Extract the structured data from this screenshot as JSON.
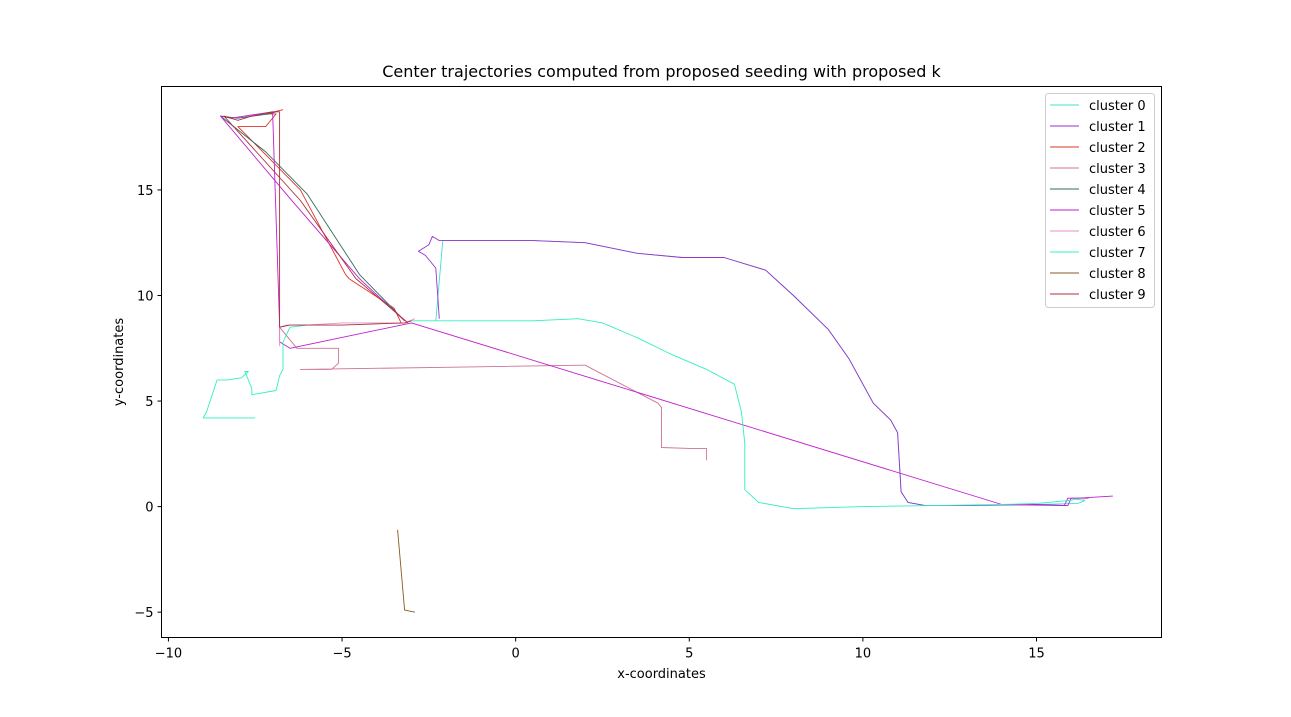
{
  "chart_data": {
    "type": "line",
    "title": "Center trajectories computed from proposed seeding with proposed k",
    "xlabel": "x-coordinates",
    "ylabel": "y-coordinates",
    "xlim": [
      -10.2,
      18.6
    ],
    "ylim": [
      -6.2,
      19.9
    ],
    "xticks": [
      -10,
      -5,
      0,
      5,
      10,
      15
    ],
    "yticks": [
      -5,
      0,
      5,
      10,
      15
    ],
    "xtick_labels": [
      "−10",
      "−5",
      "0",
      "5",
      "10",
      "15"
    ],
    "ytick_labels": [
      "−5",
      "0",
      "5",
      "10",
      "15"
    ],
    "grid": false,
    "legend_position": "top-right",
    "series": [
      {
        "name": "cluster 0",
        "color": "#40e0d0",
        "x": [
          -2.3,
          -2.1,
          0.5,
          2.0,
          3.5,
          4.8,
          6.0,
          7.2,
          8.0,
          9.0,
          9.6,
          10.0,
          10.3,
          10.8,
          11.0,
          11.1,
          11.3,
          11.8,
          13.0,
          15.0,
          16.2,
          16.4
        ],
        "y": [
          8.8,
          12.6,
          12.6,
          12.5,
          12.0,
          11.8,
          11.8,
          11.2,
          10.0,
          8.4,
          7.0,
          5.8,
          4.9,
          4.1,
          3.5,
          0.7,
          0.2,
          0.05,
          0.05,
          0.1,
          0.15,
          0.3
        ]
      },
      {
        "name": "cluster 1",
        "color": "#9932cc",
        "x": [
          -2.2,
          -2.3,
          -2.6,
          -2.8,
          -2.5,
          -2.4,
          -2.2,
          0.5,
          2.0,
          3.5,
          4.8,
          6.0,
          7.2,
          8.0,
          9.0,
          9.6,
          10.0,
          10.3,
          10.8,
          11.0,
          11.1,
          11.3,
          11.8,
          13.0,
          15.0,
          15.9,
          16.0,
          16.5
        ],
        "y": [
          8.9,
          11.3,
          11.9,
          12.1,
          12.4,
          12.8,
          12.6,
          12.6,
          12.5,
          12.0,
          11.8,
          11.8,
          11.2,
          10.0,
          8.4,
          7.0,
          5.8,
          4.9,
          4.1,
          3.5,
          0.7,
          0.2,
          0.05,
          0.05,
          0.1,
          0.05,
          0.4,
          0.4
        ]
      },
      {
        "name": "cluster 2",
        "color": "#e0302a",
        "x": [
          -3.3,
          -3.5,
          -4.8,
          -4.9,
          -6.2,
          -8.0,
          -7.2,
          -7.1,
          -6.9,
          -7.2,
          -6.7
        ],
        "y": [
          8.7,
          9.4,
          10.8,
          11.0,
          15.0,
          18.0,
          18.0,
          18.2,
          18.6,
          18.6,
          18.8
        ]
      },
      {
        "name": "cluster 3",
        "color": "#d0709a",
        "x": [
          -6.8,
          -6.3,
          -5.1,
          -5.1,
          -5.3,
          -6.2,
          -2.0,
          1.9,
          2.0,
          4.1,
          4.2,
          4.2,
          5.1,
          5.5,
          5.5
        ],
        "y": [
          8.5,
          7.5,
          7.5,
          6.8,
          6.5,
          6.5,
          6.6,
          6.7,
          6.7,
          4.9,
          4.7,
          2.8,
          2.75,
          2.75,
          2.2
        ]
      },
      {
        "name": "cluster 4",
        "color": "#2f6e5c",
        "x": [
          -3.2,
          -4.5,
          -6.0,
          -7.2,
          -8.5,
          -8.0,
          -7.1,
          -6.9
        ],
        "y": [
          8.8,
          11.0,
          14.8,
          16.8,
          18.5,
          18.4,
          18.6,
          18.7
        ]
      },
      {
        "name": "cluster 5",
        "color": "#c01ecf",
        "x": [
          -3.2,
          -4.5,
          -6.5,
          -8.5,
          -8.2,
          -7.0,
          -6.8,
          -6.8,
          -6.5,
          -3.0,
          14.0,
          15.8,
          15.9,
          16.2,
          17.2
        ],
        "y": [
          8.8,
          10.8,
          14.6,
          18.5,
          18.4,
          18.7,
          8.6,
          7.8,
          7.5,
          8.7,
          0.1,
          0.05,
          0.4,
          0.4,
          0.5
        ]
      },
      {
        "name": "cluster 6",
        "color": "#e890c8",
        "x": [
          -6.8,
          -6.8,
          -6.6,
          -6.0,
          -5.0,
          -3.2,
          -2.9
        ],
        "y": [
          7.6,
          8.5,
          8.6,
          8.6,
          8.7,
          8.7,
          8.9
        ]
      },
      {
        "name": "cluster 7",
        "color": "#30f0c0",
        "x": [
          -3.0,
          0.5,
          1.8,
          2.5,
          3.5,
          4.5,
          5.5,
          6.3,
          6.5,
          6.6,
          6.6,
          7.0,
          8.0,
          10.0,
          12.0,
          14.0,
          15.0,
          16.0,
          16.1,
          16.4,
          -7.5,
          -9.0,
          -8.9,
          -8.8,
          -8.6,
          -8.3,
          -7.9,
          -7.7,
          -7.8,
          -7.6,
          -7.6,
          -6.9,
          -6.8,
          -6.7,
          -6.7,
          -6.5,
          -6.0
        ],
        "y": [
          8.8,
          8.8,
          8.9,
          8.7,
          8.0,
          7.2,
          6.5,
          5.8,
          4.5,
          3.0,
          0.8,
          0.2,
          -0.1,
          0.0,
          0.05,
          0.1,
          0.15,
          0.3,
          0.35,
          0.3,
          4.2,
          4.2,
          4.5,
          5.0,
          6.0,
          6.0,
          6.1,
          6.4,
          6.4,
          5.6,
          5.3,
          5.5,
          6.2,
          6.5,
          7.8,
          8.5,
          8.6
        ],
        "segments_break_after": [
          19
        ]
      },
      {
        "name": "cluster 8",
        "color": "#8a5a1e",
        "x": [
          -3.4,
          -3.3,
          -3.2,
          -2.9
        ],
        "y": [
          -1.1,
          -3.0,
          -4.9,
          -5.0
        ]
      },
      {
        "name": "cluster 9",
        "color": "#a8323c",
        "x": [
          -3.1,
          -4.6,
          -6.2,
          -8.4,
          -8.0,
          -7.6,
          -7.0,
          -6.8,
          -6.8,
          -6.5,
          -5.0,
          -3.2,
          -3.2,
          -3.0
        ],
        "y": [
          8.7,
          10.8,
          14.5,
          18.5,
          18.3,
          18.5,
          18.7,
          18.7,
          8.5,
          8.6,
          8.6,
          8.7,
          8.7,
          8.8
        ]
      }
    ]
  }
}
